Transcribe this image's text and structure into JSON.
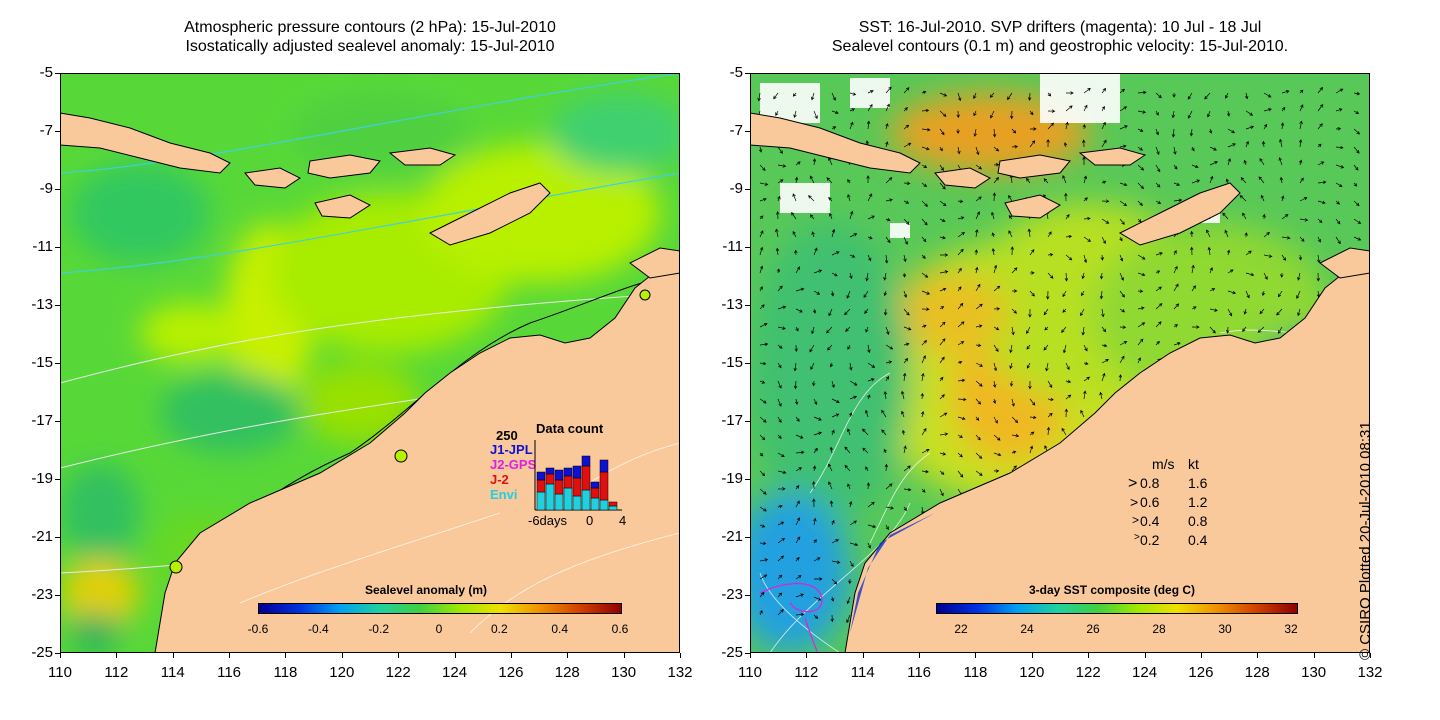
{
  "left_panel": {
    "title_line1": "Atmospheric pressure contours (2 hPa): 15-Jul-2010",
    "title_line2": "Isostatically adjusted sealevel anomaly: 15-Jul-2010",
    "colorbar_title": "Sealevel anomaly (m)",
    "colorbar_ticks": [
      "-0.6",
      "-0.4",
      "-0.2",
      "0",
      "0.2",
      "0.4",
      "0.6"
    ],
    "data_count": {
      "title": "Data count",
      "max_label": "250",
      "x_left": "-6days",
      "x_mid": "0",
      "x_right": "4",
      "missions": [
        {
          "name": "J1-JPL",
          "color": "#1010d0"
        },
        {
          "name": "J2-GPS",
          "color": "#e020e0"
        },
        {
          "name": "J-2",
          "color": "#e01010"
        },
        {
          "name": "Envi",
          "color": "#20d0e0"
        }
      ]
    }
  },
  "right_panel": {
    "title_line1": "SST: 16-Jul-2010. SVP drifters (magenta): 10 Jul - 18 Jul",
    "title_line2": "Sealevel contours (0.1 m) and geostrophic velocity: 15-Jul-2010.",
    "colorbar_title": "3-day SST composite (deg C)",
    "colorbar_ticks": [
      "22",
      "24",
      "26",
      "28",
      "30",
      "32"
    ],
    "speed_legend": {
      "header_ms": "m/s",
      "header_kt": "kt",
      "rows": [
        {
          "ms": "0.8",
          "kt": "1.6"
        },
        {
          "ms": "0.6",
          "kt": "1.2"
        },
        {
          "ms": "0.4",
          "kt": "0.8"
        },
        {
          "ms": "0.2",
          "kt": "0.4"
        }
      ]
    }
  },
  "axes": {
    "y_ticks": [
      "-5",
      "-7",
      "-9",
      "-11",
      "-13",
      "-15",
      "-17",
      "-19",
      "-21",
      "-23",
      "-25"
    ],
    "x_ticks": [
      "110",
      "112",
      "114",
      "116",
      "118",
      "120",
      "122",
      "124",
      "126",
      "128",
      "130",
      "132"
    ]
  },
  "credit": "© CSIRO Plotted 20-Jul-2010 08:31",
  "colors": {
    "land": "#f9c99c",
    "anomaly_green": "#40d040",
    "anomaly_yellow": "#c8f000",
    "sst_orange": "#f0a020"
  }
}
